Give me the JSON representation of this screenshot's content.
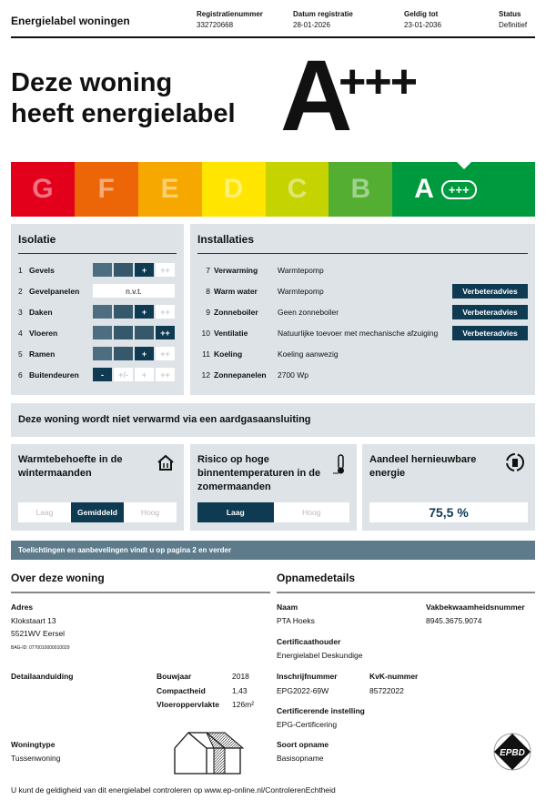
{
  "header": {
    "title": "Energielabel woningen",
    "cols": [
      {
        "label": "Registratienummer",
        "value": "332720668"
      },
      {
        "label": "Datum registratie",
        "value": "28-01-2026"
      },
      {
        "label": "Geldig tot",
        "value": "23-01-2036"
      },
      {
        "label": "Status",
        "value": "Definitief"
      }
    ]
  },
  "headline": {
    "line1": "Deze woning",
    "line2": "heeft energielabel",
    "label": "A",
    "plus": "+++"
  },
  "scale": {
    "classes": [
      "G",
      "F",
      "E",
      "D",
      "C",
      "B",
      "A"
    ],
    "active": "A",
    "active_suffix": "+++",
    "colors": [
      "#e2001a",
      "#ec6608",
      "#f7a800",
      "#ffe500",
      "#c5d300",
      "#54ae32",
      "#009a3e"
    ]
  },
  "isolatie": {
    "title": "Isolatie",
    "items": [
      {
        "n": "1",
        "label": "Gevels",
        "level": 3
      },
      {
        "n": "2",
        "label": "Gevelpanelen",
        "na": "n.v.t."
      },
      {
        "n": "3",
        "label": "Daken",
        "level": 3
      },
      {
        "n": "4",
        "label": "Vloeren",
        "level": 4
      },
      {
        "n": "5",
        "label": "Ramen",
        "level": 3
      },
      {
        "n": "6",
        "label": "Buitendeuren",
        "level": 1
      }
    ],
    "scale_labels": [
      "-",
      "+/-",
      "+",
      "++"
    ]
  },
  "installaties": {
    "title": "Installaties",
    "advice_label": "Verbeteradvies",
    "items": [
      {
        "n": "7",
        "label": "Verwarming",
        "value": "Warmtepomp",
        "advice": false
      },
      {
        "n": "8",
        "label": "Warm water",
        "value": "Warmtepomp",
        "advice": true
      },
      {
        "n": "9",
        "label": "Zonneboiler",
        "value": "Geen zonneboiler",
        "advice": true
      },
      {
        "n": "10",
        "label": "Ventilatie",
        "value": "Natuurlijke toevoer met mechanische afzuiging",
        "advice": true
      },
      {
        "n": "11",
        "label": "Koeling",
        "value": "Koeling aanwezig",
        "advice": false
      },
      {
        "n": "12",
        "label": "Zonnepanelen",
        "value": "2700 Wp",
        "advice": false
      }
    ]
  },
  "gas": "Deze woning wordt niet verwarmd via een aardgasaansluiting",
  "cards": {
    "warmte": {
      "title": "Warmtebehoefte in de wintermaanden",
      "options": [
        "Laag",
        "Gemiddeld",
        "Hoog"
      ],
      "selected": "Gemiddeld",
      "icon": "house-heat-icon"
    },
    "risico": {
      "title": "Risico op hoge binnentemperaturen in de zomermaanden",
      "options": [
        "Laag",
        "Hoog"
      ],
      "selected": "Laag",
      "icon": "thermometer-icon"
    },
    "hernieuwbaar": {
      "title": "Aandeel hernieuwbare energie",
      "value": "75,5 %",
      "icon": "renewable-icon"
    }
  },
  "banner": "Toelichtingen en aanbevelingen vindt u op pagina 2 en verder",
  "woning": {
    "title": "Over deze woning",
    "adres_label": "Adres",
    "adres1": "Klokstaart 13",
    "adres2": "5521WV Eersel",
    "bag": "BAG-ID: 0770010000010029",
    "detail_label": "Detailaanduiding",
    "facts": [
      {
        "k": "Bouwjaar",
        "v": "2018"
      },
      {
        "k": "Compactheid",
        "v": "1,43"
      },
      {
        "k": "Vloeroppervlakte",
        "v": "126m²"
      }
    ],
    "type_label": "Woningtype",
    "type": "Tussenwoning"
  },
  "opname": {
    "title": "Opnamedetails",
    "naam_label": "Naam",
    "naam": "PTA Hoeks",
    "vak_label": "Vakbekwaamheidsnummer",
    "vak": "8945.3675.9074",
    "cert_label": "Certificaathouder",
    "cert": "Energielabel Deskundige",
    "inschr_label": "Inschrijfnummer",
    "inschr": "EPG2022-69W",
    "kvk_label": "KvK-nummer",
    "kvk": "85722022",
    "inst_label": "Certificerende instelling",
    "inst": "EPG-Certificering",
    "soort_label": "Soort opname",
    "soort": "Basisopname",
    "logo": "EPBD"
  },
  "footer": {
    "text": "U kunt de geldigheid van dit energielabel controleren op ",
    "link": "www.ep-online.nl/ControlerenEchtheid"
  }
}
